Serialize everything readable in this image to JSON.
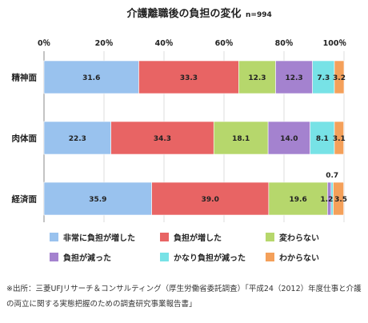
{
  "chart_data": {
    "type": "bar",
    "orientation": "horizontal",
    "stacked": true,
    "title": "介護離職後の負担の変化",
    "title_note": "n=994",
    "categories": [
      "精神面",
      "肉体面",
      "経済面"
    ],
    "xlim": [
      0,
      100
    ],
    "x_ticks": [
      "0％",
      "20％",
      "40％",
      "60％",
      "80％",
      "100％"
    ],
    "x_tick_values": [
      0,
      20,
      40,
      60,
      80,
      100
    ],
    "grid": true,
    "legend_position": "bottom",
    "series": [
      {
        "name": "非常に負担が増した",
        "color": "#99c2ee",
        "values": [
          31.6,
          22.3,
          35.9
        ]
      },
      {
        "name": "負担が増した",
        "color": "#e86464",
        "values": [
          33.3,
          34.3,
          39.0
        ]
      },
      {
        "name": "変わらない",
        "color": "#b6d76c",
        "values": [
          12.3,
          18.1,
          19.6
        ]
      },
      {
        "name": "負担が減った",
        "color": "#a482cf",
        "values": [
          12.3,
          14.0,
          1.2
        ]
      },
      {
        "name": "かなり負担が減った",
        "color": "#77e2e6",
        "values": [
          7.3,
          8.1,
          0.7
        ]
      },
      {
        "name": "わからない",
        "color": "#f4a05a",
        "values": [
          3.2,
          3.1,
          3.5
        ]
      }
    ],
    "data_labels": [
      [
        "31.6",
        "33.3",
        "12.3",
        "12.3",
        "7.3",
        "3.2"
      ],
      [
        "22.3",
        "34.3",
        "18.1",
        "14.0",
        "8.1",
        "3.1"
      ],
      [
        "35.9",
        "39.0",
        "19.6",
        "1.2",
        "0.7",
        "3.5"
      ]
    ]
  },
  "source_note": "※出所：三菱UFJリサーチ＆コンサルティング（厚生労働省委託調査）「平成24（2012）年度仕事と介護の両立に関する実態把握のための調査研究事業報告書」"
}
